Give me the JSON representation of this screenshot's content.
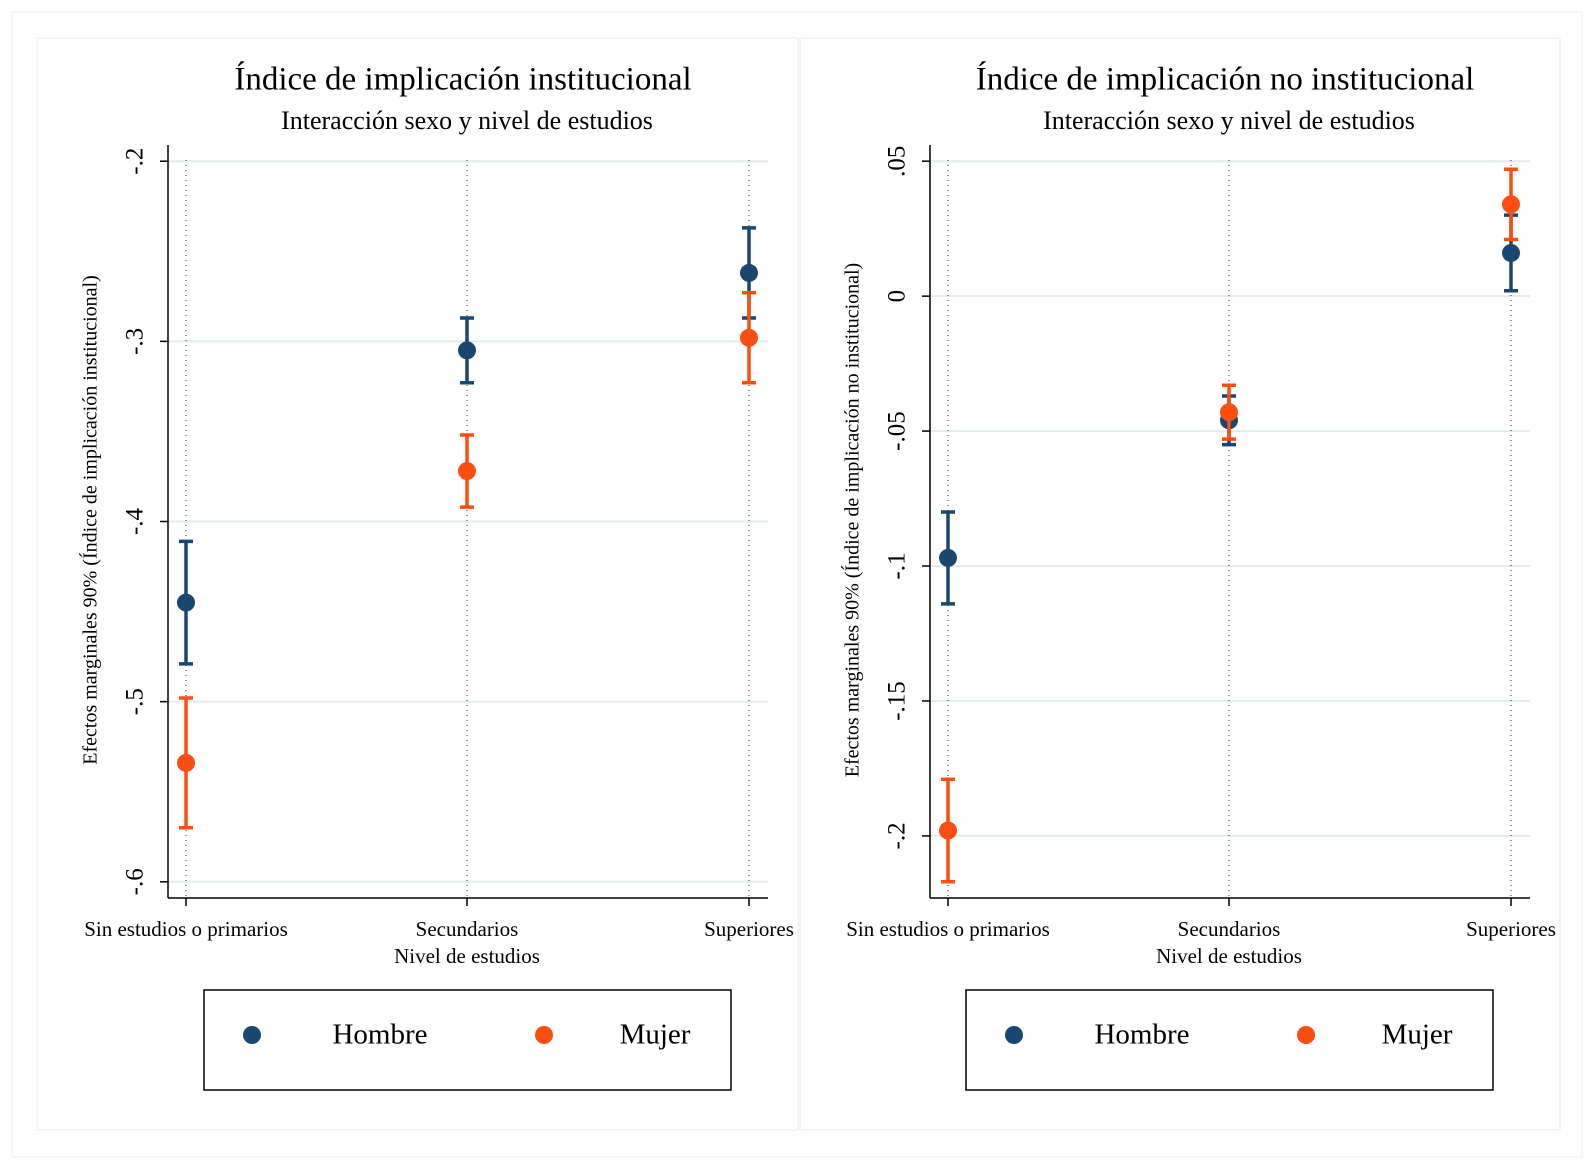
{
  "chart_data": [
    {
      "type": "errorbar",
      "title": "Índice de implicación institucional",
      "subtitle": "Interacción sexo y nivel de estudios",
      "xlabel": "Nivel de estudios",
      "ylabel": "Efectos marginales 90% (Índice de implicación institucional)",
      "categories": [
        "Sin estudios o primarios",
        "Secundarios",
        "Superiores"
      ],
      "series": [
        {
          "name": "Hombre",
          "color": "#1a476f",
          "values": [
            -0.445,
            -0.305,
            -0.262
          ],
          "errors": [
            0.034,
            0.018,
            0.025
          ]
        },
        {
          "name": "Mujer",
          "color": "#fc4e10",
          "values": [
            -0.534,
            -0.372,
            -0.298
          ],
          "errors": [
            0.036,
            0.02,
            0.025
          ]
        }
      ],
      "ylim": [
        -0.609,
        -0.191
      ],
      "yticks": [
        {
          "value": -0.6,
          "label": "-.6"
        },
        {
          "value": -0.5,
          "label": "-.5"
        },
        {
          "value": -0.4,
          "label": "-.4"
        },
        {
          "value": -0.3,
          "label": "-.3"
        },
        {
          "value": -0.2,
          "label": "-.2"
        }
      ],
      "grid": true
    },
    {
      "type": "errorbar",
      "title": "Índice de implicación no institucional",
      "subtitle": "Interacción sexo y nivel de estudios",
      "xlabel": "Nivel de estudios",
      "ylabel": "Efectos marginales 90% (Índice de implicación no institucional)",
      "categories": [
        "Sin estudios o primarios",
        "Secundarios",
        "Superiores"
      ],
      "series": [
        {
          "name": "Hombre",
          "color": "#1a476f",
          "values": [
            -0.097,
            -0.046,
            0.016
          ],
          "errors": [
            0.017,
            0.009,
            0.014
          ]
        },
        {
          "name": "Mujer",
          "color": "#fc4e10",
          "values": [
            -0.198,
            -0.043,
            0.034
          ],
          "errors": [
            0.019,
            0.01,
            0.013
          ]
        }
      ],
      "ylim": [
        -0.223,
        0.056
      ],
      "yticks": [
        {
          "value": -0.2,
          "label": "-.2"
        },
        {
          "value": -0.15,
          "label": "-.15"
        },
        {
          "value": -0.1,
          "label": "-.1"
        },
        {
          "value": -0.05,
          "label": "-.05"
        },
        0,
        {
          "value": 0.05,
          "label": ".05"
        }
      ],
      "grid": true
    }
  ]
}
